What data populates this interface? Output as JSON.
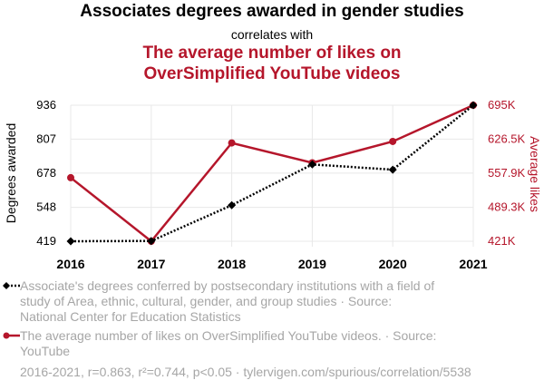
{
  "header": {
    "title": "Associates degrees awarded in gender studies",
    "subtitle": "correlates with",
    "title2_line1": "The average number of likes on",
    "title2_line2": "OverSimplified YouTube videos"
  },
  "colors": {
    "series1": "#000000",
    "series2": "#b5162b",
    "grid": "#e8e8e8",
    "legend_text": "#a6a6a6"
  },
  "chart_data": {
    "type": "line",
    "x": [
      2016,
      2017,
      2018,
      2019,
      2020,
      2021
    ],
    "x_tick_labels": [
      "2016",
      "2017",
      "2018",
      "2019",
      "2020",
      "2021"
    ],
    "y_left": {
      "label": "Degrees awarded",
      "range": [
        419,
        936
      ],
      "ticks": [
        419,
        548,
        678,
        807,
        936
      ],
      "tick_labels": [
        "419",
        "548",
        "678",
        "807",
        "936"
      ]
    },
    "y_right": {
      "label": "Average likes",
      "range": [
        421000,
        695000
      ],
      "ticks": [
        421000,
        489300,
        557900,
        626500,
        695000
      ],
      "tick_labels": [
        "421K",
        "489.3K",
        "557.9K",
        "626.5K",
        "695K"
      ]
    },
    "grid": true,
    "series": [
      {
        "axis": "left",
        "style": "dotted",
        "marker": "diamond",
        "values": [
          419,
          420,
          556,
          711,
          691,
          936
        ]
      },
      {
        "axis": "right",
        "style": "solid",
        "marker": "circle",
        "values": [
          549000,
          421000,
          619000,
          579000,
          622000,
          695000
        ]
      }
    ]
  },
  "legend": {
    "item1_lines": [
      "Associate's degrees conferred by postsecondary institutions with a field of",
      "study of Area, ethnic, cultural, gender, and group studies · Source:",
      "National Center for Education Statistics"
    ],
    "item2_lines": [
      "The average number of likes on OverSimplified YouTube videos. · Source:",
      "YouTube"
    ]
  },
  "footer": "2016-2021, r=0.863, r²=0.744, p<0.05 · tylervigen.com/spurious/correlation/5538"
}
